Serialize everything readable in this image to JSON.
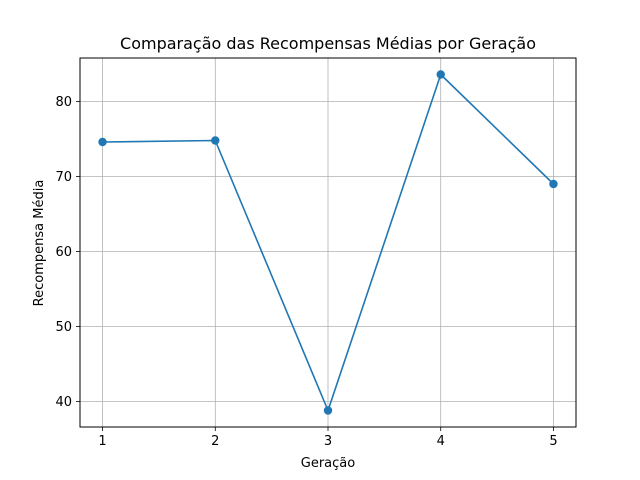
{
  "chart_data": {
    "type": "line",
    "title": "Comparação das Recompensas Médias por Geração",
    "xlabel": "Geração",
    "ylabel": "Recompensa Média",
    "x": [
      1,
      2,
      3,
      4,
      5
    ],
    "xticks": [
      "1",
      "2",
      "3",
      "4",
      "5"
    ],
    "yticks": [
      40,
      50,
      60,
      70,
      80
    ],
    "xlim": [
      0.8,
      5.2
    ],
    "ylim": [
      36.6,
      85.8
    ],
    "grid": true,
    "series": [
      {
        "values": [
          74.6,
          74.8,
          38.8,
          83.6,
          69.0
        ],
        "color": "#1f77b4",
        "marker": "circle"
      }
    ]
  }
}
